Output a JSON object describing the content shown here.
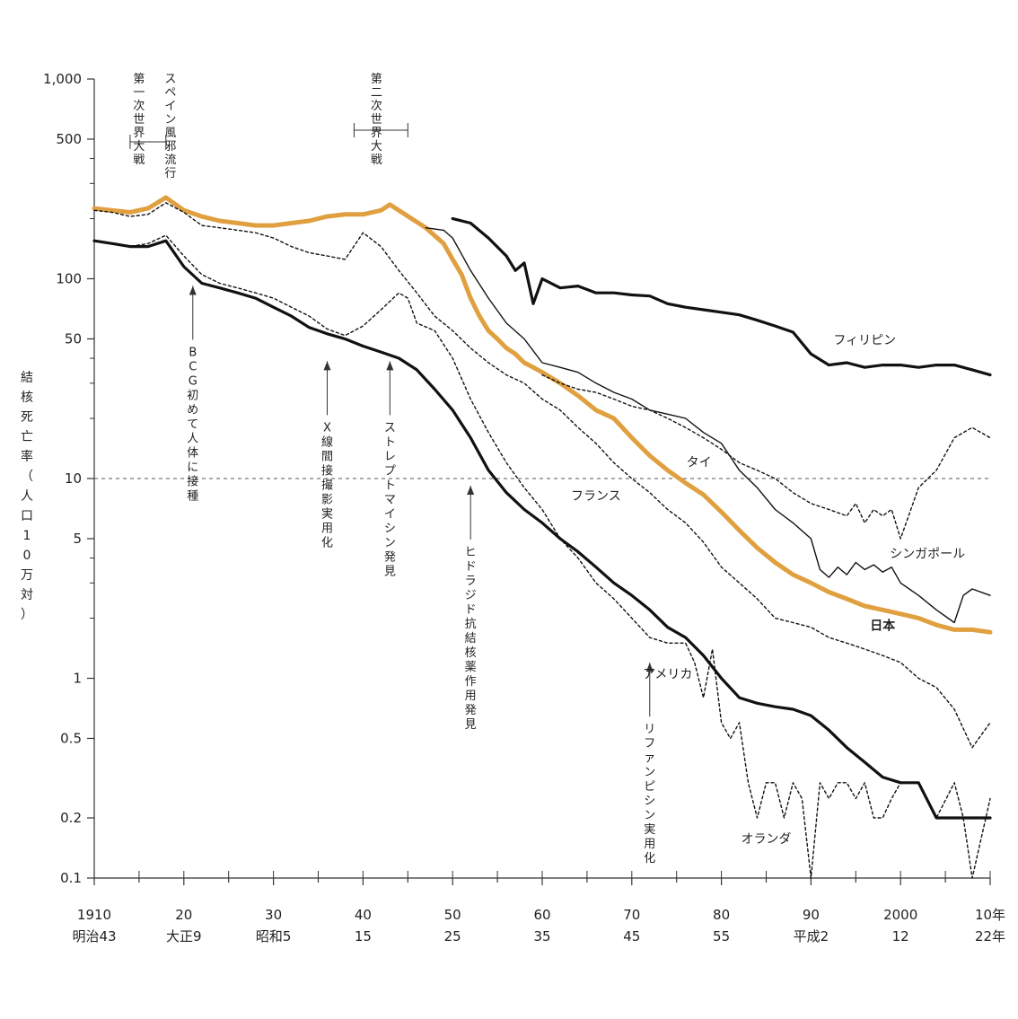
{
  "chart_data": {
    "type": "line",
    "title": "",
    "xlabel": "",
    "ylabel": "結核死亡率（人口10万対）",
    "yscale": "log",
    "ylim": [
      0.1,
      1000
    ],
    "xlim": [
      1910,
      2010
    ],
    "grid": false,
    "reference_line": {
      "y": 10,
      "style": "dashed"
    },
    "y_ticks": [
      {
        "value": 1000,
        "label": "1,000"
      },
      {
        "value": 500,
        "label": "500"
      },
      {
        "value": 100,
        "label": "100"
      },
      {
        "value": 50,
        "label": "50"
      },
      {
        "value": 10,
        "label": "10"
      },
      {
        "value": 5,
        "label": "5"
      },
      {
        "value": 1,
        "label": "1"
      },
      {
        "value": 0.5,
        "label": "0.5"
      },
      {
        "value": 0.2,
        "label": "0.2"
      },
      {
        "value": 0.1,
        "label": "0.1"
      }
    ],
    "x_ticks": [
      {
        "value": 1910,
        "line1": "1910",
        "line2": "明治43"
      },
      {
        "value": 1920,
        "line1": "20",
        "line2": "大正9"
      },
      {
        "value": 1930,
        "line1": "30",
        "line2": "昭和5"
      },
      {
        "value": 1940,
        "line1": "40",
        "line2": "15"
      },
      {
        "value": 1950,
        "line1": "50",
        "line2": "25"
      },
      {
        "value": 1960,
        "line1": "60",
        "line2": "35"
      },
      {
        "value": 1970,
        "line1": "70",
        "line2": "45"
      },
      {
        "value": 1980,
        "line1": "80",
        "line2": "55"
      },
      {
        "value": 1990,
        "line1": "90",
        "line2": "平成2"
      },
      {
        "value": 2000,
        "line1": "2000",
        "line2": "12"
      },
      {
        "value": 2010,
        "line1": "10年",
        "line2": "22年"
      }
    ],
    "series": [
      {
        "name": "日本",
        "color": "#e0a040",
        "style": "thick",
        "x": [
          1910,
          1912,
          1914,
          1916,
          1918,
          1920,
          1922,
          1924,
          1926,
          1928,
          1930,
          1932,
          1934,
          1936,
          1938,
          1940,
          1942,
          1943,
          1947,
          1949,
          1950,
          1951,
          1952,
          1953,
          1954,
          1955,
          1956,
          1957,
          1958,
          1959,
          1960,
          1962,
          1964,
          1966,
          1968,
          1970,
          1972,
          1974,
          1976,
          1978,
          1980,
          1982,
          1984,
          1986,
          1988,
          1990,
          1992,
          1994,
          1996,
          1998,
          2000,
          2002,
          2004,
          2006,
          2008,
          2010
        ],
        "y": [
          225,
          220,
          215,
          225,
          255,
          220,
          205,
          195,
          190,
          185,
          185,
          190,
          195,
          205,
          210,
          210,
          220,
          235,
          180,
          150,
          125,
          105,
          80,
          65,
          55,
          50,
          45,
          42,
          38,
          36,
          34,
          30,
          26,
          22,
          20,
          16,
          13,
          11,
          9.5,
          8.3,
          6.8,
          5.5,
          4.5,
          3.8,
          3.3,
          3.0,
          2.7,
          2.5,
          2.3,
          2.2,
          2.1,
          2.0,
          1.85,
          1.75,
          1.75,
          1.7
        ]
      },
      {
        "name": "アメリカ",
        "color": "#111111",
        "style": "thick",
        "x": [
          1910,
          1912,
          1914,
          1916,
          1918,
          1920,
          1922,
          1924,
          1926,
          1928,
          1930,
          1932,
          1934,
          1936,
          1938,
          1940,
          1942,
          1944,
          1946,
          1948,
          1950,
          1952,
          1954,
          1956,
          1958,
          1960,
          1962,
          1964,
          1966,
          1968,
          1970,
          1972,
          1974,
          1976,
          1978,
          1980,
          1982,
          1984,
          1986,
          1988,
          1990,
          1992,
          1994,
          1996,
          1998,
          2000,
          2002,
          2004,
          2010
        ],
        "y": [
          155,
          150,
          145,
          145,
          155,
          115,
          95,
          90,
          85,
          80,
          72,
          65,
          57,
          53,
          50,
          46,
          43,
          40,
          35,
          28,
          22,
          16,
          11,
          8.5,
          7.0,
          6.0,
          5.0,
          4.3,
          3.6,
          3.0,
          2.6,
          2.2,
          1.8,
          1.6,
          1.3,
          1.0,
          0.8,
          0.75,
          0.72,
          0.7,
          0.65,
          0.55,
          0.45,
          0.38,
          0.32,
          0.3,
          0.3,
          0.2,
          0.2
        ]
      },
      {
        "name": "フィリピン",
        "color": "#111111",
        "style": "thick",
        "x": [
          1950,
          1952,
          1954,
          1956,
          1957,
          1958,
          1959,
          1960,
          1962,
          1964,
          1966,
          1968,
          1970,
          1972,
          1974,
          1976,
          1978,
          1980,
          1982,
          1984,
          1986,
          1988,
          1990,
          1992,
          1994,
          1996,
          1998,
          2000,
          2002,
          2004,
          2006,
          2008,
          2010
        ],
        "y": [
          200,
          190,
          160,
          130,
          110,
          120,
          75,
          100,
          90,
          92,
          85,
          85,
          83,
          82,
          75,
          72,
          70,
          68,
          66,
          62,
          58,
          54,
          42,
          37,
          38,
          36,
          37,
          37,
          36,
          37,
          37,
          35,
          33
        ]
      },
      {
        "name": "シンガポール",
        "color": "#111111",
        "style": "thin",
        "x": [
          1947,
          1949,
          1950,
          1952,
          1954,
          1956,
          1958,
          1960,
          1962,
          1964,
          1966,
          1968,
          1970,
          1972,
          1974,
          1976,
          1978,
          1980,
          1982,
          1984,
          1986,
          1988,
          1990,
          1991,
          1992,
          1993,
          1994,
          1995,
          1996,
          1997,
          1998,
          1999,
          2000,
          2002,
          2004,
          2006,
          2007,
          2008,
          2010
        ],
        "y": [
          180,
          175,
          160,
          110,
          80,
          60,
          50,
          38,
          36,
          34,
          30,
          27,
          25,
          22,
          21,
          20,
          17,
          15,
          11,
          9,
          7,
          6,
          5.0,
          3.5,
          3.2,
          3.6,
          3.3,
          3.8,
          3.5,
          3.7,
          3.4,
          3.6,
          3.0,
          2.6,
          2.2,
          1.9,
          2.6,
          2.8,
          2.6
        ]
      },
      {
        "name": "タイ",
        "color": "#111111",
        "style": "dotted",
        "x": [
          1960,
          1962,
          1964,
          1966,
          1968,
          1970,
          1972,
          1974,
          1976,
          1978,
          1980,
          1982,
          1984,
          1986,
          1988,
          1990,
          1992,
          1994,
          1995,
          1996,
          1997,
          1998,
          1999,
          2000,
          2002,
          2004,
          2006,
          2008,
          2010
        ],
        "y": [
          33,
          30,
          28,
          27,
          25,
          23,
          22,
          20,
          18,
          16,
          14,
          12,
          11,
          10,
          8.5,
          7.5,
          7.0,
          6.5,
          7.5,
          6.0,
          7.0,
          6.5,
          7.0,
          5.0,
          9.0,
          11,
          16,
          18,
          16
        ]
      },
      {
        "name": "フランス",
        "color": "#111111",
        "style": "dotted",
        "x": [
          1910,
          1912,
          1914,
          1916,
          1918,
          1920,
          1922,
          1924,
          1926,
          1928,
          1930,
          1932,
          1934,
          1936,
          1938,
          1940,
          1942,
          1944,
          1946,
          1948,
          1950,
          1952,
          1954,
          1956,
          1958,
          1960,
          1962,
          1964,
          1966,
          1968,
          1970,
          1972,
          1974,
          1976,
          1978,
          1980,
          1982,
          1984,
          1986,
          1988,
          1990,
          1992,
          1994,
          1996,
          1998,
          2000,
          2002,
          2004,
          2006,
          2008,
          2010
        ],
        "y": [
          220,
          215,
          205,
          210,
          240,
          215,
          185,
          180,
          175,
          170,
          160,
          145,
          135,
          130,
          125,
          170,
          145,
          110,
          85,
          65,
          55,
          45,
          38,
          33,
          30,
          25,
          22,
          18,
          15,
          12,
          10,
          8.5,
          7.0,
          6.0,
          4.8,
          3.6,
          3.0,
          2.5,
          2.0,
          1.9,
          1.8,
          1.6,
          1.5,
          1.4,
          1.3,
          1.2,
          1.0,
          0.9,
          0.7,
          0.45,
          0.6
        ]
      },
      {
        "name": "オランダ",
        "color": "#111111",
        "style": "dotted",
        "x": [
          1910,
          1912,
          1914,
          1916,
          1918,
          1920,
          1922,
          1924,
          1926,
          1928,
          1930,
          1932,
          1934,
          1936,
          1938,
          1940,
          1942,
          1944,
          1945,
          1946,
          1948,
          1950,
          1952,
          1954,
          1956,
          1958,
          1960,
          1962,
          1964,
          1966,
          1968,
          1970,
          1972,
          1974,
          1976,
          1977,
          1978,
          1979,
          1980,
          1981,
          1982,
          1983,
          1984,
          1985,
          1986,
          1987,
          1988,
          1989,
          1990,
          1991,
          1992,
          1993,
          1994,
          1995,
          1996,
          1997,
          1998,
          1999,
          2000,
          2002,
          2004,
          2006,
          2007,
          2008,
          2010
        ],
        "y": [
          155,
          150,
          145,
          150,
          165,
          130,
          105,
          95,
          90,
          85,
          80,
          72,
          65,
          56,
          52,
          58,
          70,
          85,
          80,
          60,
          55,
          40,
          25,
          17,
          12,
          9,
          7,
          5,
          4,
          3,
          2.5,
          2,
          1.6,
          1.5,
          1.5,
          1.2,
          0.8,
          1.4,
          0.6,
          0.5,
          0.6,
          0.3,
          0.2,
          0.3,
          0.3,
          0.2,
          0.3,
          0.25,
          0.1,
          0.3,
          0.25,
          0.3,
          0.3,
          0.25,
          0.3,
          0.2,
          0.2,
          0.25,
          0.3,
          0.3,
          0.2,
          0.3,
          0.2,
          0.1,
          0.25
        ]
      }
    ],
    "annotations": [
      {
        "x": 1915,
        "y_top": 480,
        "label": "第一次世界大戦",
        "bracket": [
          1914,
          1918
        ]
      },
      {
        "x": 1918.5,
        "y_top": 480,
        "label": "スペイン風邪流行"
      },
      {
        "x": 1941.5,
        "y_top": 600,
        "label": "第二次世界大戦",
        "bracket": [
          1939,
          1945
        ]
      },
      {
        "x": 1921,
        "y_arrow": 100,
        "label": "BCG初めて人体に接種"
      },
      {
        "x": 1936,
        "y_arrow": 42,
        "label": "X線間接撮影実用化"
      },
      {
        "x": 1943,
        "y_arrow": 42,
        "label": "ストレプトマイシン発見"
      },
      {
        "x": 1952,
        "y_arrow": 10,
        "label": "ヒドラジド抗結核薬作用発見"
      },
      {
        "x": 1972,
        "y_arrow": 1.3,
        "label": "リファンピシン実用化"
      }
    ],
    "series_labels": [
      {
        "name": "フィリピン",
        "x": 1996,
        "y": 47
      },
      {
        "name": "タイ",
        "x": 1977.5,
        "y": 11.5
      },
      {
        "name": "フランス",
        "x": 1966,
        "y": 7.8
      },
      {
        "name": "シンガポール",
        "x": 2003,
        "y": 4.0
      },
      {
        "name": "日本",
        "x": 1998,
        "y": 1.75
      },
      {
        "name": "アメリカ",
        "x": 1974,
        "y": 1.0
      },
      {
        "name": "オランダ",
        "x": 1985,
        "y": 0.15
      }
    ]
  }
}
